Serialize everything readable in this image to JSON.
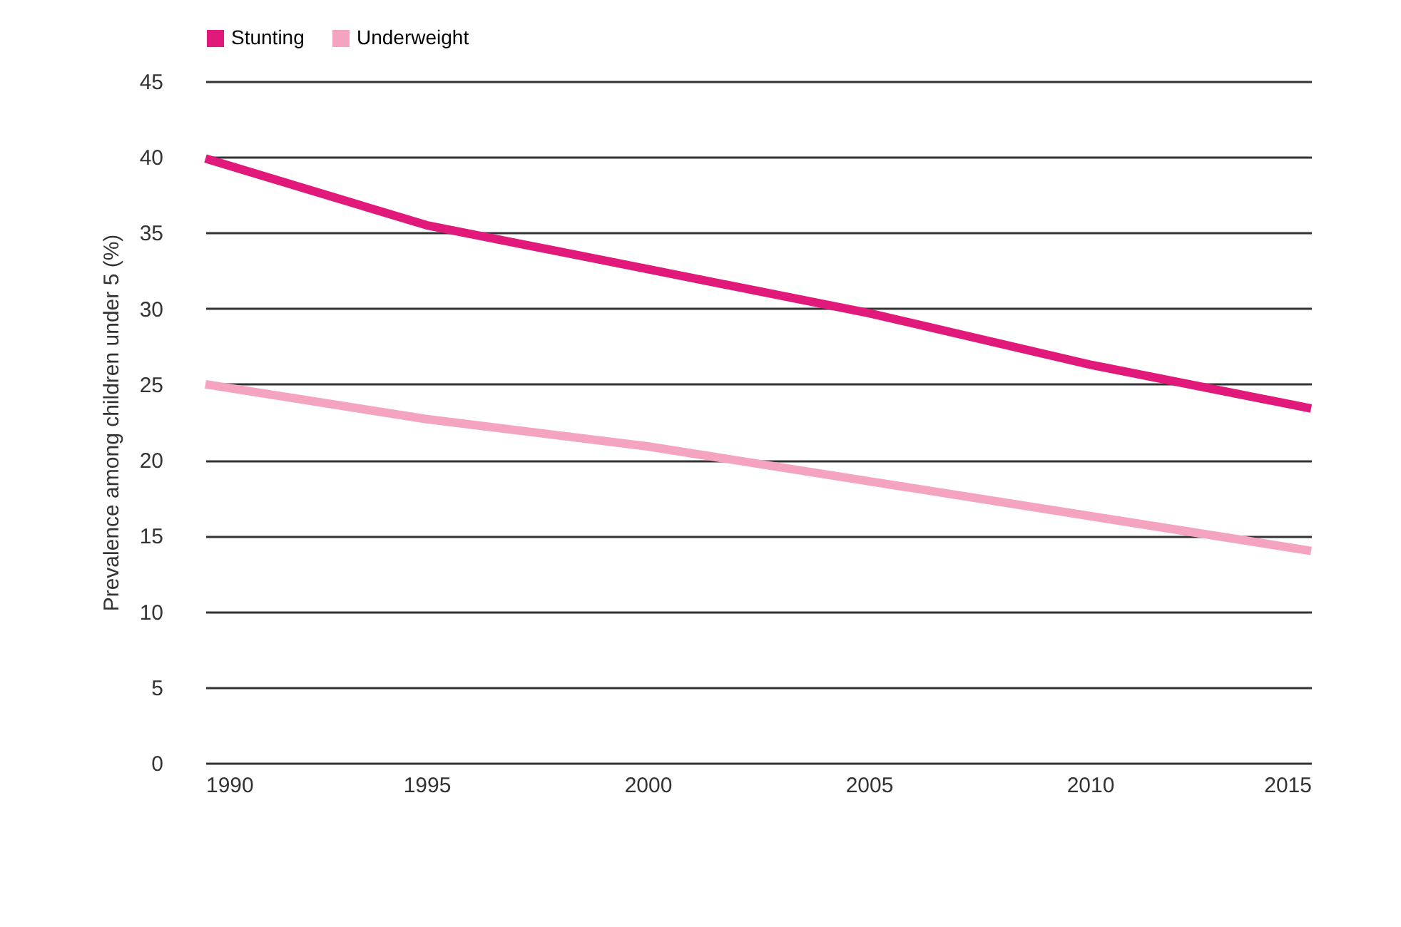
{
  "chart_data": {
    "type": "line",
    "ylabel": "Prevalence among children under 5 (%)",
    "x": [
      1990,
      1995,
      2000,
      2005,
      2010,
      2015
    ],
    "series": [
      {
        "name": "Stunting",
        "color": "#e0197a",
        "values": [
          39.9,
          35.5,
          32.6,
          29.7,
          26.3,
          23.4
        ]
      },
      {
        "name": "Underweight",
        "color": "#f4a3c0",
        "values": [
          25.0,
          22.7,
          20.9,
          18.6,
          16.3,
          14.0
        ]
      }
    ],
    "xlim": [
      1990,
      2015
    ],
    "xticks": [
      1990,
      1995,
      2000,
      2005,
      2010,
      2015
    ],
    "ylim": [
      0,
      45
    ],
    "yticks": [
      0,
      5,
      10,
      15,
      20,
      25,
      30,
      35,
      40,
      45
    ],
    "grid": "y",
    "legend": "top left",
    "marker": "none",
    "line_style": "solid"
  }
}
